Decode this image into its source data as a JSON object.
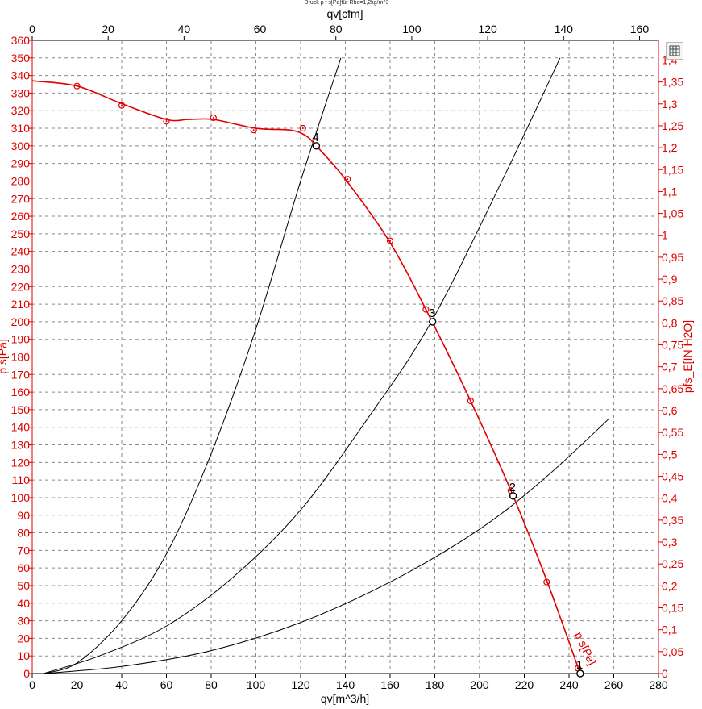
{
  "chart_data": {
    "type": "line",
    "title": "Druck p f s[Pa]für Rho=1,2kg/m^3",
    "xlabel": "qv[m^3/h]",
    "x2label": "qv[cfm]",
    "ylabel": "p s[Pa]",
    "y2label": "pfs_E[IN H2O]",
    "xlim": [
      0,
      280
    ],
    "ylim": [
      0,
      360
    ],
    "x2lim": [
      0,
      165
    ],
    "y2lim": [
      0,
      1.445
    ],
    "x_ticks": [
      "0",
      "20",
      "40",
      "60",
      "80",
      "100",
      "120",
      "140",
      "160",
      "180",
      "200",
      "220",
      "240",
      "260",
      "280"
    ],
    "x2_ticks": [
      "0",
      "20",
      "40",
      "60",
      "80",
      "100",
      "120",
      "140",
      "160"
    ],
    "y_ticks": [
      "0",
      "10",
      "20",
      "30",
      "40",
      "50",
      "60",
      "70",
      "80",
      "90",
      "100",
      "110",
      "120",
      "130",
      "140",
      "150",
      "160",
      "170",
      "180",
      "190",
      "200",
      "210",
      "220",
      "230",
      "240",
      "250",
      "260",
      "270",
      "280",
      "290",
      "300",
      "310",
      "320",
      "330",
      "340",
      "350",
      "360"
    ],
    "y2_ticks": [
      "0",
      "0,05",
      "0,1",
      "0,15",
      "0,2",
      "0,25",
      "0,3",
      "0,35",
      "0,4",
      "0,45",
      "0,5",
      "0,55",
      "0,6",
      "0,65",
      "0,7",
      "0,75",
      "0,8",
      "0,85",
      "0,9",
      "0,95",
      "1",
      "1,05",
      "1,1",
      "1,15",
      "1,2",
      "1,25",
      "1,3",
      "1,35",
      "1,4"
    ],
    "grid": true,
    "fan_curve": {
      "name": "p s[Pa]",
      "color": "#e00000",
      "x": [
        0,
        20,
        40,
        60,
        70,
        81,
        100,
        115,
        122,
        127,
        140,
        160,
        178,
        196,
        214,
        230,
        245
      ],
      "y": [
        337,
        334,
        324,
        315,
        315,
        315,
        310,
        309,
        306,
        300,
        281,
        245,
        202,
        155,
        104,
        53,
        0
      ]
    },
    "measured_points": {
      "x": [
        20,
        40,
        60,
        81,
        99,
        121,
        141,
        160,
        176,
        196,
        214,
        230,
        244
      ],
      "y": [
        334,
        323,
        314,
        316,
        309,
        310,
        281,
        246,
        207,
        155,
        104,
        52,
        3
      ]
    },
    "system_curves": [
      {
        "x": [
          5,
          20,
          40,
          60,
          80,
          100,
          120,
          138
        ],
        "y": [
          0,
          6,
          30,
          68,
          125,
          196,
          280,
          350
        ]
      },
      {
        "x": [
          5,
          30,
          60,
          90,
          120,
          150,
          178,
          210,
          236
        ],
        "y": [
          0,
          10,
          27,
          55,
          93,
          145,
          199,
          280,
          350
        ]
      },
      {
        "x": [
          5,
          40,
          80,
          120,
          160,
          200,
          230,
          258
        ],
        "y": [
          0,
          4,
          13,
          29,
          52,
          82,
          112,
          145
        ]
      }
    ],
    "operating_points": [
      {
        "label": "1",
        "x": 245,
        "y": 0
      },
      {
        "label": "2",
        "x": 215,
        "y": 101
      },
      {
        "label": "3",
        "x": 179,
        "y": 200
      },
      {
        "label": "4",
        "x": 127,
        "y": 300
      }
    ]
  }
}
